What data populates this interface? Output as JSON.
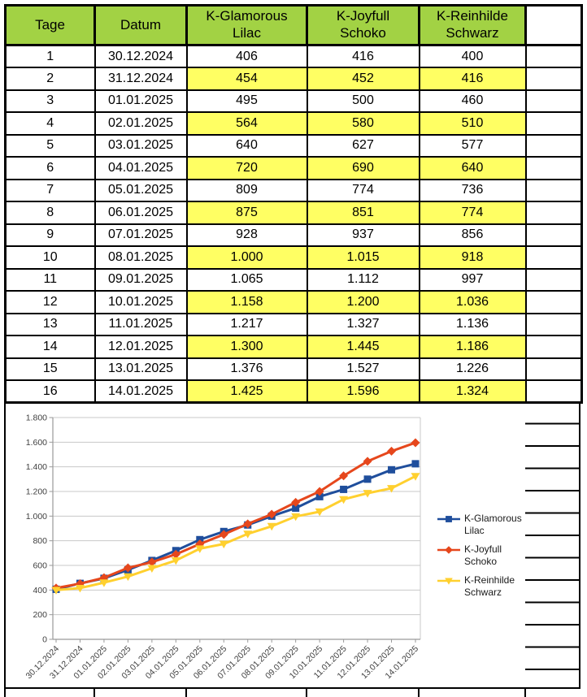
{
  "table": {
    "headers": [
      "Tage",
      "Datum",
      "K-Glamorous Lilac",
      "K-Joyfull Schoko",
      "K-Reinhilde Schwarz",
      ""
    ],
    "header_bg": "#A2D244",
    "highlight_bg": "#FFFF63",
    "days": [
      "1",
      "2",
      "3",
      "4",
      "5",
      "6",
      "7",
      "8",
      "9",
      "10",
      "11",
      "12",
      "13",
      "14",
      "15",
      "16"
    ]
  },
  "chart_data": {
    "type": "line",
    "x": [
      "30.12.2024",
      "31.12.2024",
      "01.01.2025",
      "02.01.2025",
      "03.01.2025",
      "04.01.2025",
      "05.01.2025",
      "06.01.2025",
      "07.01.2025",
      "08.01.2025",
      "09.01.2025",
      "10.01.2025",
      "11.01.2025",
      "12.01.2025",
      "13.01.2025",
      "14.01.2025"
    ],
    "series": [
      {
        "name": "K-Glamorous Lilac",
        "color": "#1F4E9C",
        "marker": "square",
        "values": [
          406,
          454,
          495,
          564,
          640,
          720,
          809,
          875,
          928,
          1000,
          1065,
          1158,
          1217,
          1300,
          1376,
          1425
        ]
      },
      {
        "name": "K-Joyfull Schoko",
        "color": "#E6471C",
        "marker": "diamond",
        "values": [
          416,
          452,
          500,
          580,
          627,
          690,
          774,
          851,
          937,
          1015,
          1112,
          1200,
          1327,
          1445,
          1527,
          1596
        ]
      },
      {
        "name": "K-Reinhilde Schwarz",
        "color": "#FFD02F",
        "marker": "triangle-down",
        "values": [
          400,
          416,
          460,
          510,
          577,
          640,
          736,
          774,
          856,
          918,
          997,
          1036,
          1136,
          1186,
          1226,
          1324
        ]
      }
    ],
    "ylim": [
      0,
      1800
    ],
    "ytick_step": 200,
    "ytick_labels": [
      "0",
      "200",
      "400",
      "600",
      "800",
      "1.000",
      "1.200",
      "1.400",
      "1.600",
      "1.800"
    ],
    "grid": true,
    "legend_position": "right",
    "colors": {
      "gridline": "#C8C8C8",
      "axis": "#9A9A9A",
      "label": "#404040"
    }
  }
}
